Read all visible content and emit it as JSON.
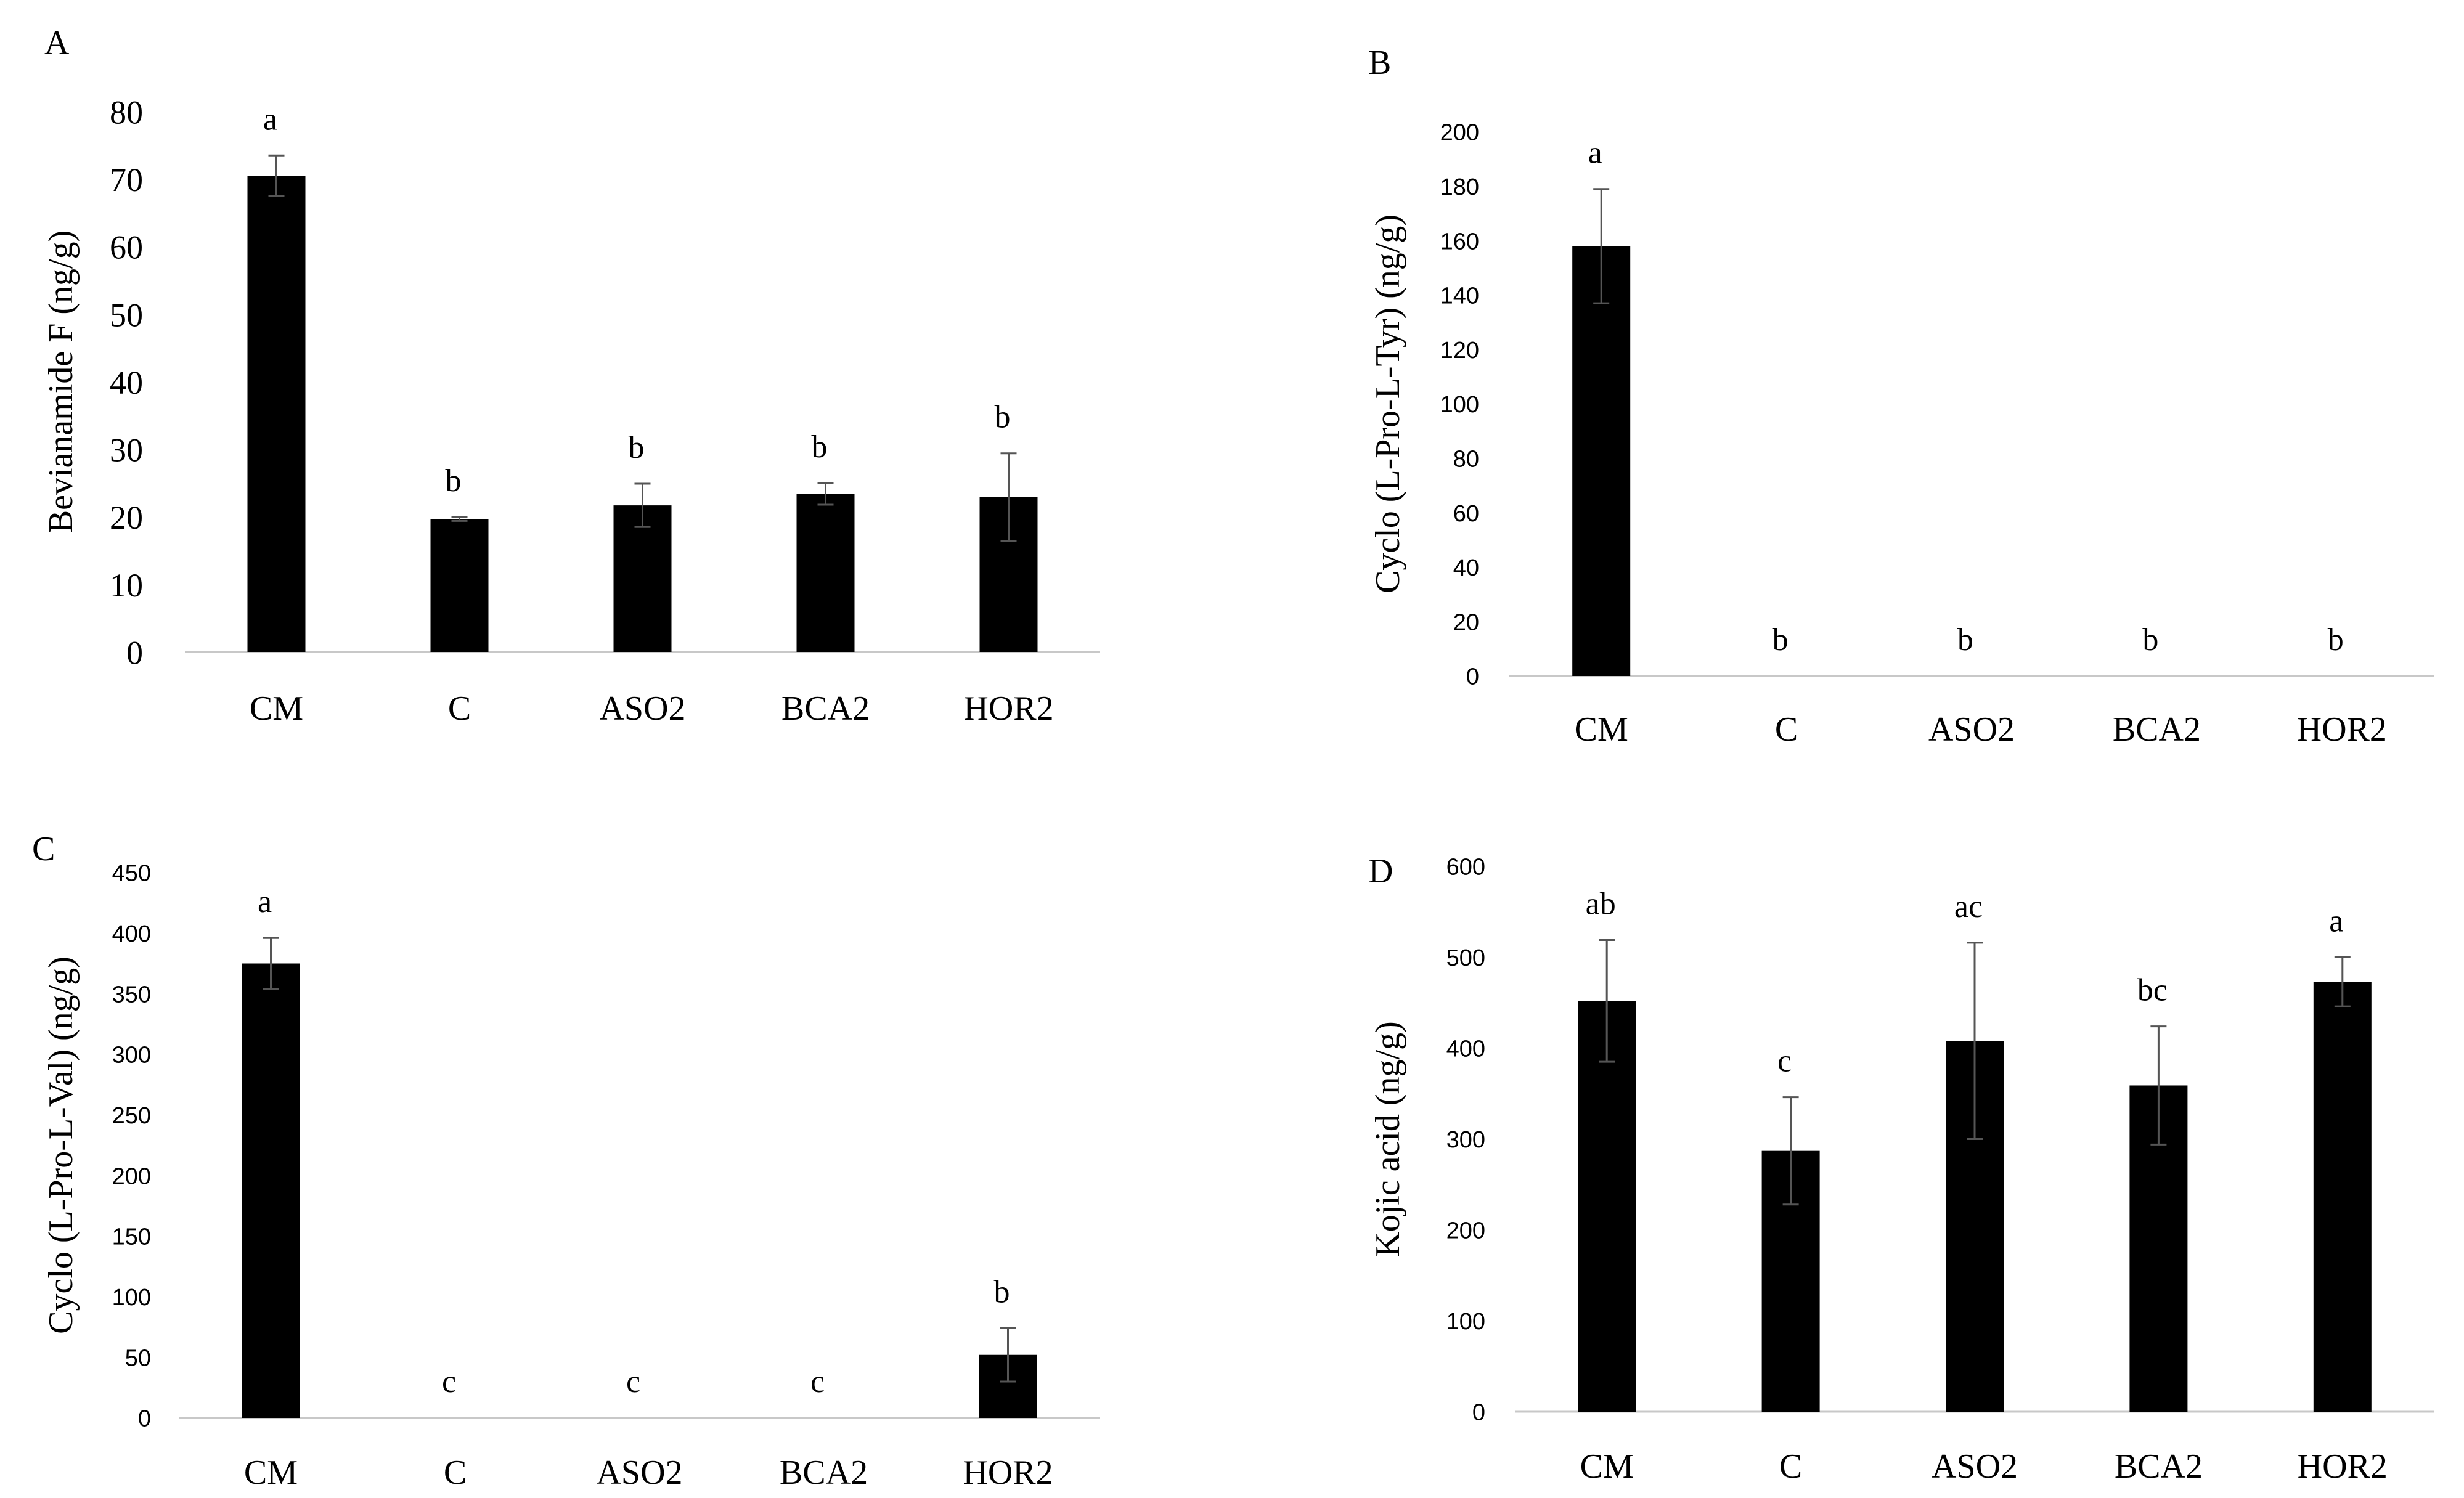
{
  "chart_data": [
    {
      "panel": "A",
      "type": "bar",
      "categories": [
        "CM",
        "C",
        "ASO2",
        "BCA2",
        "HOR2"
      ],
      "values": [
        70.5,
        19.7,
        21.7,
        23.4,
        22.9
      ],
      "errors": [
        3.0,
        0.3,
        3.2,
        1.6,
        6.5
      ],
      "letters": [
        "a",
        "b",
        "b",
        "b",
        "b"
      ],
      "ylabel": "Bevianamide F (ng/g)",
      "ylim": [
        0,
        80
      ],
      "yticks": [
        0,
        10,
        20,
        30,
        40,
        50,
        60,
        70,
        80
      ]
    },
    {
      "panel": "B",
      "type": "bar",
      "categories": [
        "CM",
        "C",
        "ASO2",
        "BCA2",
        "HOR2"
      ],
      "values": [
        158,
        0,
        0,
        0,
        0
      ],
      "errors": [
        21,
        0,
        0,
        0,
        0
      ],
      "letters": [
        "a",
        "b",
        "b",
        "b",
        "b"
      ],
      "ylabel": "Cyclo (L-Pro-L-Tyr) (ng/g)",
      "ylim": [
        0,
        200
      ],
      "yticks": [
        0,
        20,
        40,
        60,
        80,
        100,
        120,
        140,
        160,
        180,
        200
      ]
    },
    {
      "panel": "C",
      "type": "bar",
      "categories": [
        "CM",
        "C",
        "ASO2",
        "BCA2",
        "HOR2"
      ],
      "values": [
        375,
        0,
        0,
        0,
        52
      ],
      "errors": [
        21,
        0,
        0,
        0,
        22
      ],
      "letters": [
        "a",
        "c",
        "c",
        "c",
        "b"
      ],
      "ylabel": "Cyclo (L-Pro-L-Val) (ng/g)",
      "ylim": [
        0,
        450
      ],
      "yticks": [
        0,
        50,
        100,
        150,
        200,
        250,
        300,
        350,
        400,
        450
      ]
    },
    {
      "panel": "D",
      "type": "bar",
      "categories": [
        "CM",
        "C",
        "ASO2",
        "BCA2",
        "HOR2"
      ],
      "values": [
        452,
        287,
        408,
        359,
        473
      ],
      "errors": [
        67,
        59,
        108,
        65,
        27
      ],
      "letters": [
        "ab",
        "c",
        "ac",
        "bc",
        "a"
      ],
      "ylabel": "Kojic acid (ng/g)",
      "ylim": [
        0,
        600
      ],
      "yticks": [
        0,
        100,
        200,
        300,
        400,
        500,
        600
      ]
    }
  ],
  "colors": {
    "bar": "#000000",
    "axis": "#c8c8c8",
    "text": "#000000"
  }
}
